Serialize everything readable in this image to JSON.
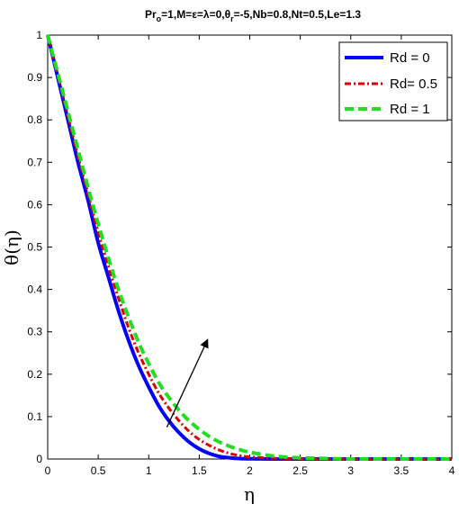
{
  "chart_data": {
    "type": "line",
    "title_parts": {
      "p1": "Pr",
      "p1_sub": "o",
      "p2": "=1,M=ε=λ=0,θ",
      "p2_sub": "r",
      "p3": "=-5,Nb=0.8,Nt=0.5,Le=1.3"
    },
    "xlabel": "η",
    "ylabel": "θ(η)",
    "xlim": [
      0,
      4
    ],
    "ylim": [
      0,
      1
    ],
    "xticks": [
      "0",
      "0.5",
      "1",
      "1.5",
      "2",
      "2.5",
      "3",
      "3.5",
      "4"
    ],
    "yticks": [
      "0",
      "0.1",
      "0.2",
      "0.3",
      "0.4",
      "0.5",
      "0.6",
      "0.7",
      "0.8",
      "0.9",
      "1"
    ],
    "grid": false,
    "legend_position": "top-right",
    "x": [
      0,
      0.1,
      0.2,
      0.3,
      0.4,
      0.5,
      0.6,
      0.7,
      0.8,
      0.9,
      1.0,
      1.1,
      1.2,
      1.3,
      1.4,
      1.5,
      1.6,
      1.7,
      1.8,
      1.9,
      2.0,
      2.2,
      2.4,
      2.6,
      2.8,
      3.0,
      3.5,
      4.0
    ],
    "series": [
      {
        "name": "Rd = 0",
        "color": "#0000ff",
        "dash": "solid",
        "values": [
          1.0,
          0.9,
          0.8,
          0.7,
          0.61,
          0.51,
          0.43,
          0.35,
          0.28,
          0.22,
          0.17,
          0.125,
          0.09,
          0.062,
          0.04,
          0.024,
          0.013,
          0.006,
          0.003,
          0.001,
          0.0005,
          0,
          0,
          0,
          0,
          0,
          0,
          0
        ]
      },
      {
        "name": "Rd= 0.5",
        "color": "#dd0000",
        "dash": "dashdot",
        "values": [
          1.0,
          0.905,
          0.81,
          0.715,
          0.625,
          0.535,
          0.455,
          0.38,
          0.31,
          0.25,
          0.2,
          0.155,
          0.12,
          0.09,
          0.065,
          0.046,
          0.032,
          0.021,
          0.013,
          0.008,
          0.005,
          0.002,
          0.001,
          0,
          0,
          0,
          0,
          0
        ]
      },
      {
        "name": "Rd = 1",
        "color": "#22dd22",
        "dash": "dashed",
        "values": [
          1.0,
          0.91,
          0.82,
          0.73,
          0.64,
          0.555,
          0.475,
          0.4,
          0.335,
          0.275,
          0.225,
          0.18,
          0.145,
          0.115,
          0.09,
          0.07,
          0.053,
          0.04,
          0.03,
          0.022,
          0.016,
          0.008,
          0.004,
          0.002,
          0.001,
          0,
          0,
          0
        ]
      }
    ],
    "annotation_arrow": {
      "from": [
        1.18,
        0.075
      ],
      "to": [
        1.58,
        0.28
      ]
    }
  }
}
